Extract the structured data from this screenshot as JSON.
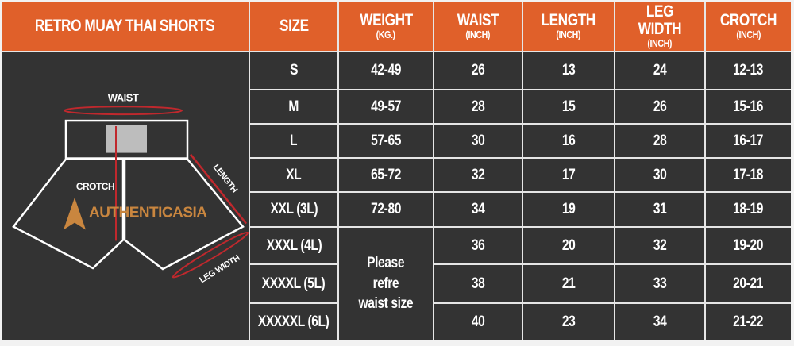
{
  "title": "RETRO MUAY THAI SHORTS",
  "headers": [
    {
      "label": "SIZE",
      "unit": ""
    },
    {
      "label": "WEIGHT",
      "unit": "(KG.)"
    },
    {
      "label": "WAIST",
      "unit": "(INCH)"
    },
    {
      "label": "LENGTH",
      "unit": "(INCH)"
    },
    {
      "label": "LEG WIDTH",
      "unit": "(INCH)"
    },
    {
      "label": "CROTCH",
      "unit": "(INCH)"
    }
  ],
  "rows": [
    {
      "size": "S",
      "weight": "42-49",
      "waist": "26",
      "length": "13",
      "leg_width": "24",
      "crotch": "12-13"
    },
    {
      "size": "M",
      "weight": "49-57",
      "waist": "28",
      "length": "15",
      "leg_width": "26",
      "crotch": "15-16"
    },
    {
      "size": "L",
      "weight": "57-65",
      "waist": "30",
      "length": "16",
      "leg_width": "28",
      "crotch": "16-17"
    },
    {
      "size": "XL",
      "weight": "65-72",
      "waist": "32",
      "length": "17",
      "leg_width": "30",
      "crotch": "17-18"
    },
    {
      "size": "XXL (3L)",
      "weight": "72-80",
      "waist": "34",
      "length": "19",
      "leg_width": "31",
      "crotch": "18-19"
    },
    {
      "size": "XXXL (4L)",
      "waist": "36",
      "length": "20",
      "leg_width": "32",
      "crotch": "19-20"
    },
    {
      "size": "XXXXL (5L)",
      "waist": "38",
      "length": "21",
      "leg_width": "33",
      "crotch": "20-21"
    },
    {
      "size": "XXXXXL (6L)",
      "waist": "40",
      "length": "23",
      "leg_width": "34",
      "crotch": "21-22"
    }
  ],
  "weight_note": [
    "Please",
    "refre",
    "waist size"
  ],
  "diagram": {
    "waist_label": "WAIST",
    "crotch_label": "CROTCH",
    "length_label": "LENGTH",
    "leg_width_label": "LEG WIDTH",
    "logo_text_a": "AUTHENTIC",
    "logo_text_b": "ASIA"
  },
  "colors": {
    "header": "#e0602a",
    "cell": "#333333",
    "measure": "#c0282d",
    "logo": "#c9863f"
  }
}
